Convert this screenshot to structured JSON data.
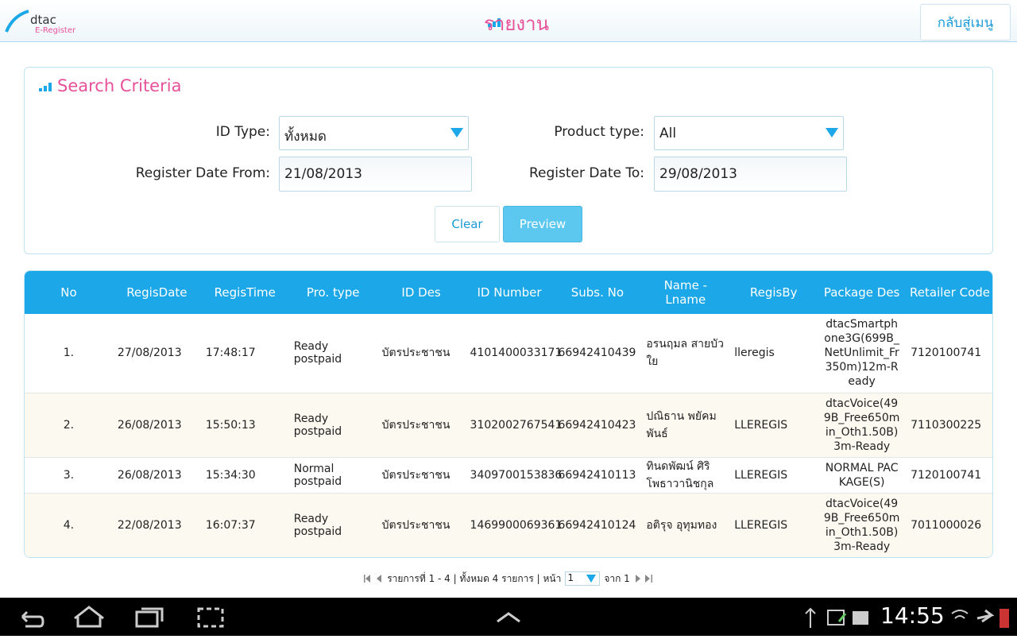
{
  "header": {
    "logo": "dtac",
    "logo_sub": "E-Register",
    "title": "รายงาน",
    "back_button": "กลับสู่เมนู"
  },
  "search": {
    "title": "Search Criteria",
    "id_type_label": "ID Type:",
    "id_type_value": "ทั้งหมด",
    "product_type_label": "Product type:",
    "product_type_value": "All",
    "date_from_label": "Register Date From:",
    "date_from_value": "21/08/2013",
    "date_to_label": "Register Date To:",
    "date_to_value": "29/08/2013",
    "clear_button": "Clear",
    "preview_button": "Preview"
  },
  "table": {
    "columns": [
      "No",
      "RegisDate",
      "RegisTime",
      "Pro. type",
      "ID Des",
      "ID Number",
      "Subs. No",
      "Name - Lname",
      "RegisBy",
      "Package Des",
      "Retailer Code"
    ],
    "rows": [
      [
        "1.",
        "27/08/2013",
        "17:48:17",
        "Ready postpaid",
        "บัตรประชาชน",
        "4101400033171",
        "66942410439",
        "อรนฤมล สายบัวใย",
        "lleregis",
        "dtacSmartphone3G(699B_NetUnlimit_Fr350m)12m-Ready",
        "7120100741"
      ],
      [
        "2.",
        "26/08/2013",
        "15:50:13",
        "Ready postpaid",
        "บัตรประชาชน",
        "3102002767541",
        "66942410423",
        "ปณิธาน พยัคมพันธ์",
        "LLEREGIS",
        "dtacVoice(499B_Free650min_Oth1.50B)3m-Ready",
        "7110300225"
      ],
      [
        "3.",
        "26/08/2013",
        "15:34:30",
        "Normal postpaid",
        "บัตรประชาชน",
        "3409700153836",
        "66942410113",
        "ทินดพัฒน์ ศิริโพธาวานิชกุล",
        "LLEREGIS",
        "NORMAL PACKAGE(S)",
        "7120100741"
      ],
      [
        "4.",
        "22/08/2013",
        "16:07:37",
        "Ready postpaid",
        "บัตรประชาชน",
        "1469900069361",
        "66942410124",
        "อติรุจ อุทุมทอง",
        "LLEREGIS",
        "dtacVoice(499B_Free650min_Oth1.50B)3m-Ready",
        "7011000026"
      ]
    ]
  },
  "pager": {
    "summary": "รายการที่ 1 - 4 | ทั้งหมด 4 รายการ | หน้า",
    "page": "1",
    "of": "จาก 1"
  },
  "status_bar": {
    "time": "14:55"
  }
}
